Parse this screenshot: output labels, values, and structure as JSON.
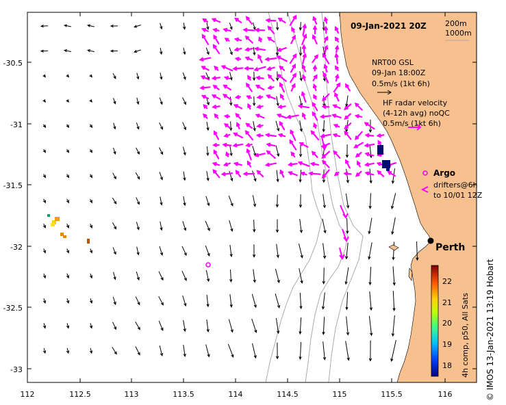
{
  "map": {
    "date_title": "09-Jan-2021 20Z",
    "isobath_shallow": "200m",
    "isobath_deep": "1000m",
    "lon_ticks": [
      "112",
      "112.5",
      "113",
      "113.5",
      "114",
      "114.5",
      "115",
      "115.5",
      "116"
    ],
    "lat_ticks": [
      "-30.5",
      "-31",
      "-31.5",
      "-32",
      "-32.5",
      "-33"
    ],
    "model_legend": {
      "line1": "NRT00 GSL",
      "line2": "09-Jan 18:00Z",
      "line3": "0.5m/s (1kt 6h)"
    },
    "radar_legend": {
      "line1": "HF radar velocity",
      "line2": "(4-12h avg) noQC",
      "line3": "0.5m/s (1kt 6h)"
    },
    "argo_label": "Argo",
    "drifter_line1": "drifters@6h",
    "drifter_line2": "to 10/01 12Z",
    "city_label": "Perth",
    "colorbar": {
      "ticks": [
        "22",
        "21",
        "20",
        "19",
        "18"
      ],
      "label": "4h comp, p50, All Sats",
      "range": [
        17.5,
        22.8
      ]
    },
    "credit": "© IMOS 13-Jan-2021 13:19 Hobart",
    "colors": {
      "land": "#f7c08f",
      "radar_arrows": "#ff00ff",
      "model_arrows": "#000000",
      "isobaths": "#aaaaaa"
    }
  }
}
